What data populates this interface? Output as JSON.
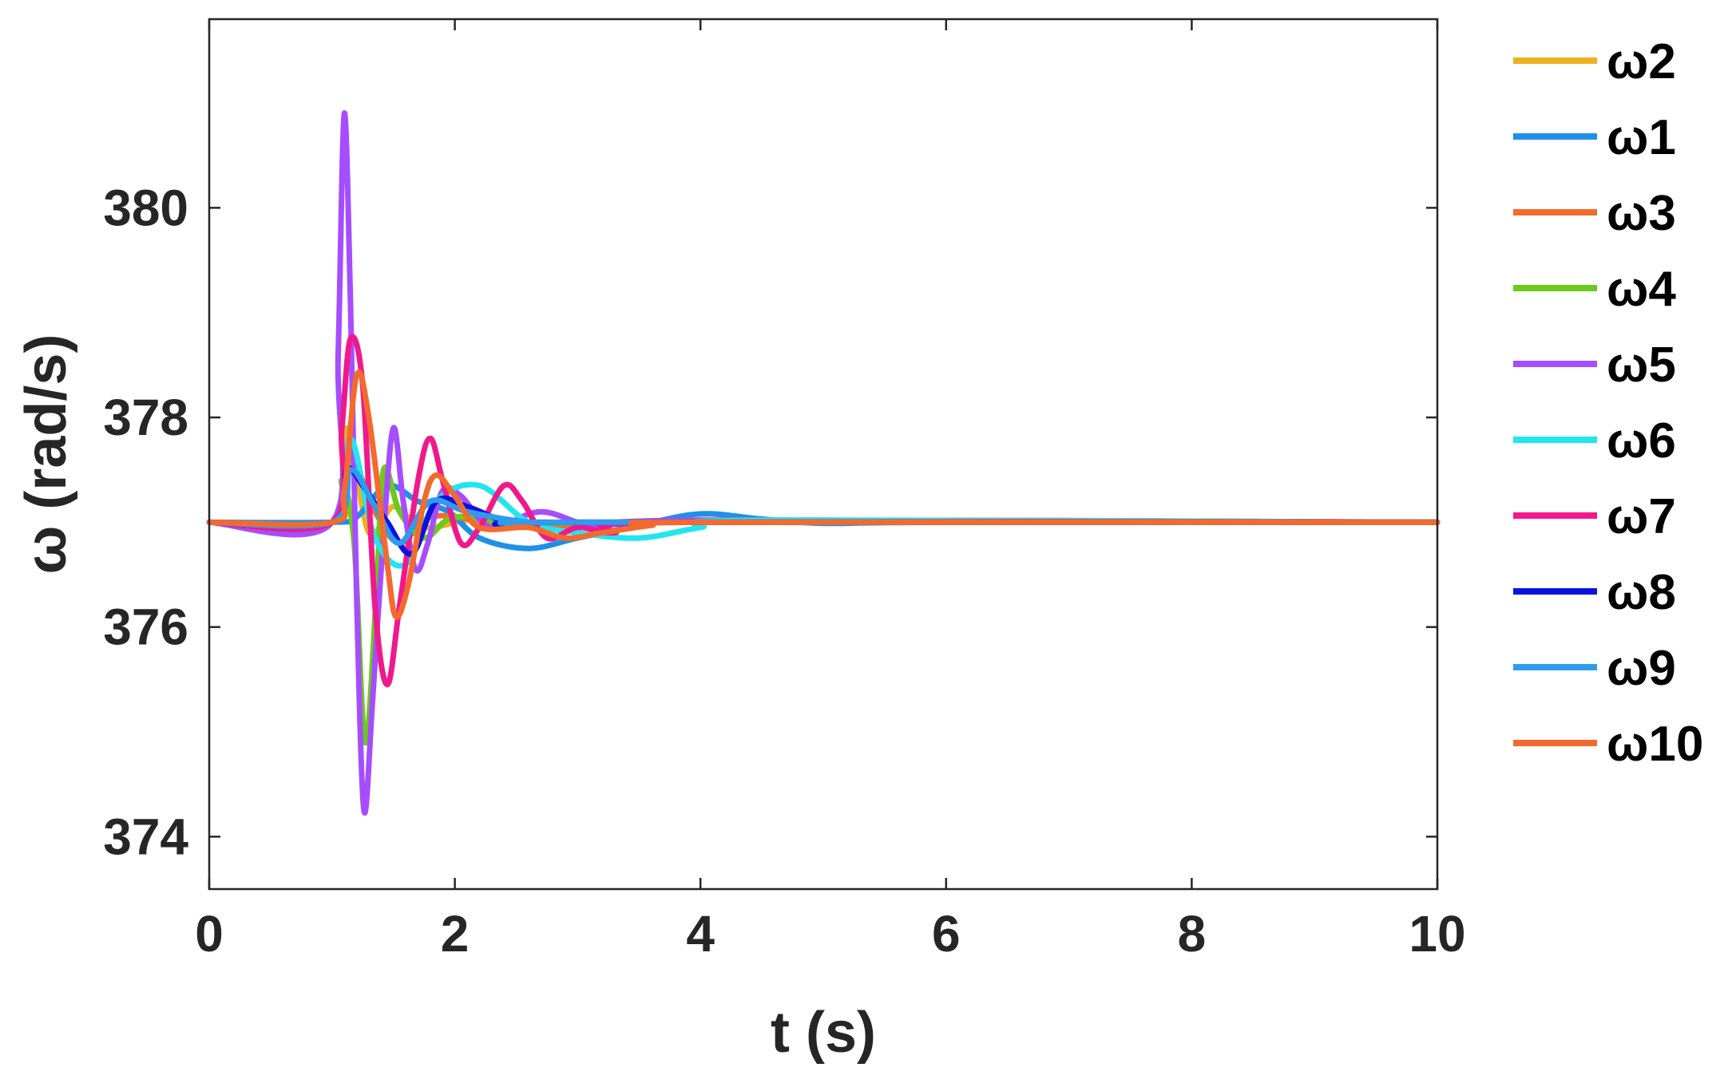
{
  "chart_data": {
    "type": "line",
    "title": "",
    "xlabel": "t (s)",
    "ylabel": "ω (rad/s)",
    "xlim": [
      0,
      10
    ],
    "ylim": [
      373.5,
      381.8
    ],
    "xticks": [
      "0",
      "2",
      "4",
      "6",
      "8",
      "10"
    ],
    "yticks": [
      "374",
      "376",
      "378",
      "380"
    ],
    "grid": false,
    "legend_position": "outside-right",
    "baseline": 377,
    "series": [
      {
        "name": "ω2",
        "color": "#EDB120",
        "points": [
          [
            0,
            377
          ],
          [
            1.0,
            377
          ],
          [
            1.12,
            377.9
          ],
          [
            1.3,
            376.9
          ],
          [
            1.5,
            377.15
          ],
          [
            1.75,
            376.95
          ],
          [
            2.2,
            377.03
          ],
          [
            3,
            377
          ],
          [
            10,
            377
          ]
        ]
      },
      {
        "name": "ω1",
        "color": "#1E90E8",
        "points": [
          [
            0,
            377
          ],
          [
            1.0,
            377
          ],
          [
            1.2,
            377.05
          ],
          [
            1.45,
            377.35
          ],
          [
            1.7,
            377.2
          ],
          [
            1.95,
            377.1
          ],
          [
            2.2,
            376.85
          ],
          [
            2.6,
            376.75
          ],
          [
            3.0,
            376.85
          ],
          [
            3.5,
            376.97
          ],
          [
            4.0,
            377.08
          ],
          [
            4.5,
            377.03
          ],
          [
            5.0,
            376.99
          ],
          [
            6,
            377
          ],
          [
            10,
            377
          ]
        ]
      },
      {
        "name": "ω3",
        "color": "#F26B2D",
        "points": [
          [
            0,
            377
          ],
          [
            1.0,
            377
          ],
          [
            1.15,
            377.6
          ],
          [
            1.35,
            377.1
          ],
          [
            1.55,
            376.8
          ],
          [
            1.8,
            377.05
          ],
          [
            2.2,
            377.02
          ],
          [
            3,
            376.95
          ],
          [
            4,
            377.02
          ],
          [
            10,
            377
          ]
        ]
      },
      {
        "name": "ω4",
        "color": "#6CC91E",
        "points": [
          [
            0,
            377
          ],
          [
            1.0,
            377
          ],
          [
            1.08,
            377.4
          ],
          [
            1.18,
            376.8
          ],
          [
            1.27,
            374.9
          ],
          [
            1.36,
            376.3
          ],
          [
            1.42,
            377.5
          ],
          [
            1.55,
            377.1
          ],
          [
            1.75,
            376.85
          ],
          [
            2.0,
            377.05
          ],
          [
            2.5,
            376.98
          ],
          [
            3.5,
            377
          ],
          [
            10,
            377
          ]
        ]
      },
      {
        "name": "ω5",
        "color": "#A64DFF",
        "points": [
          [
            0,
            377
          ],
          [
            1.0,
            377
          ],
          [
            1.05,
            378.6
          ],
          [
            1.1,
            380.9
          ],
          [
            1.15,
            379.1
          ],
          [
            1.2,
            376.3
          ],
          [
            1.26,
            374.25
          ],
          [
            1.33,
            375.3
          ],
          [
            1.42,
            376.9
          ],
          [
            1.5,
            377.9
          ],
          [
            1.58,
            377.2
          ],
          [
            1.68,
            376.55
          ],
          [
            1.78,
            376.8
          ],
          [
            1.9,
            377.3
          ],
          [
            2.05,
            377.25
          ],
          [
            2.3,
            376.95
          ],
          [
            2.7,
            377.1
          ],
          [
            3.2,
            376.95
          ],
          [
            4,
            377.02
          ],
          [
            10,
            377
          ]
        ]
      },
      {
        "name": "ω6",
        "color": "#22E5EE",
        "points": [
          [
            0,
            377
          ],
          [
            1.0,
            377
          ],
          [
            1.15,
            377.8
          ],
          [
            1.35,
            376.85
          ],
          [
            1.6,
            376.6
          ],
          [
            1.85,
            377.2
          ],
          [
            2.2,
            377.35
          ],
          [
            2.6,
            377.0
          ],
          [
            3.0,
            376.9
          ],
          [
            3.5,
            376.85
          ],
          [
            4.0,
            376.95
          ],
          [
            4.5,
            377.02
          ],
          [
            10,
            377
          ]
        ]
      },
      {
        "name": "ω7",
        "color": "#F0198C",
        "points": [
          [
            0,
            377
          ],
          [
            1.0,
            377
          ],
          [
            1.08,
            377.9
          ],
          [
            1.15,
            378.75
          ],
          [
            1.25,
            378.3
          ],
          [
            1.35,
            376.2
          ],
          [
            1.45,
            375.45
          ],
          [
            1.55,
            376.2
          ],
          [
            1.7,
            377.4
          ],
          [
            1.8,
            377.8
          ],
          [
            1.9,
            377.4
          ],
          [
            2.05,
            376.8
          ],
          [
            2.2,
            376.95
          ],
          [
            2.4,
            377.35
          ],
          [
            2.55,
            377.2
          ],
          [
            2.75,
            376.85
          ],
          [
            3.0,
            376.95
          ],
          [
            3.3,
            376.9
          ],
          [
            3.8,
            377
          ],
          [
            10,
            377
          ]
        ]
      },
      {
        "name": "ω8",
        "color": "#0A12E0",
        "points": [
          [
            0,
            377
          ],
          [
            1.0,
            377
          ],
          [
            1.12,
            377.5
          ],
          [
            1.25,
            377.35
          ],
          [
            1.45,
            377.0
          ],
          [
            1.65,
            376.7
          ],
          [
            1.85,
            377.2
          ],
          [
            2.1,
            377.15
          ],
          [
            2.5,
            376.98
          ],
          [
            3,
            377
          ],
          [
            10,
            377
          ]
        ]
      },
      {
        "name": "ω9",
        "color": "#2F9BEE",
        "points": [
          [
            0,
            377
          ],
          [
            1.0,
            377
          ],
          [
            1.15,
            377.5
          ],
          [
            1.35,
            377.15
          ],
          [
            1.55,
            376.8
          ],
          [
            1.8,
            377.2
          ],
          [
            2.1,
            377.1
          ],
          [
            2.6,
            377.0
          ],
          [
            3,
            377
          ],
          [
            10,
            377
          ]
        ]
      },
      {
        "name": "ω10",
        "color": "#F46A2E",
        "points": [
          [
            0,
            377
          ],
          [
            1.0,
            377
          ],
          [
            1.1,
            377.3
          ],
          [
            1.2,
            378.4
          ],
          [
            1.3,
            378.0
          ],
          [
            1.45,
            376.6
          ],
          [
            1.52,
            376.1
          ],
          [
            1.62,
            376.4
          ],
          [
            1.75,
            377.2
          ],
          [
            1.85,
            377.45
          ],
          [
            2.0,
            377.25
          ],
          [
            2.2,
            376.95
          ],
          [
            2.6,
            376.95
          ],
          [
            2.9,
            376.85
          ],
          [
            3.2,
            376.9
          ],
          [
            3.6,
            376.97
          ],
          [
            4.0,
            377.0
          ],
          [
            10,
            377
          ]
        ]
      }
    ]
  }
}
